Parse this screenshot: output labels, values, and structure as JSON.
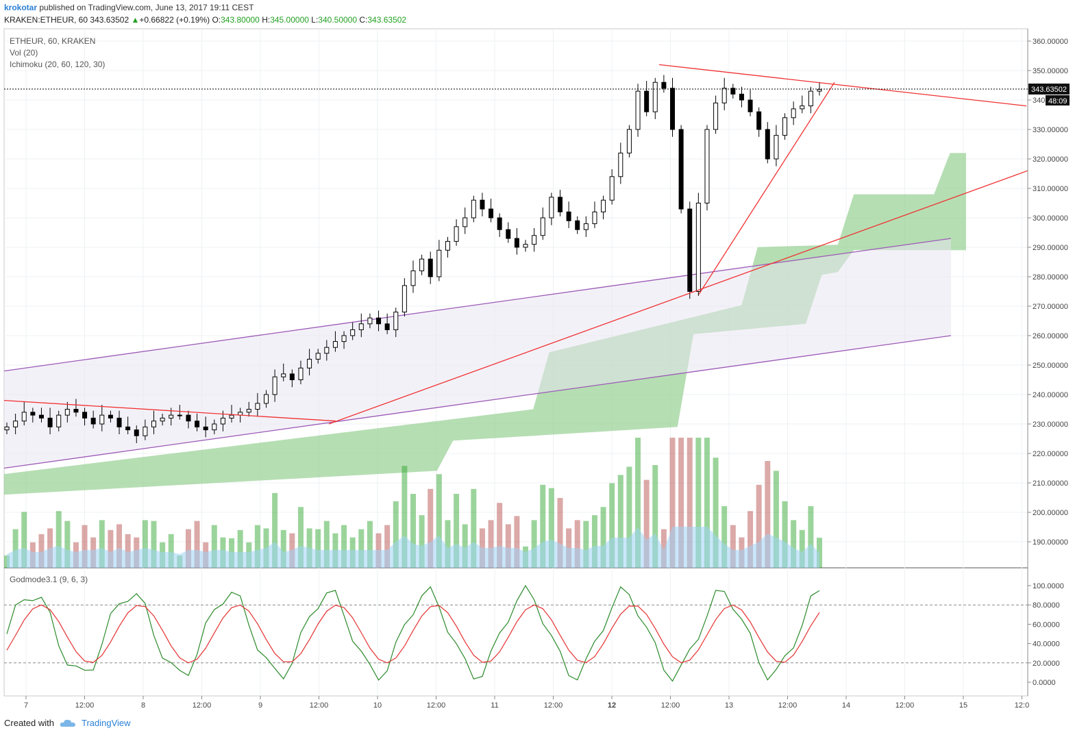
{
  "header": {
    "user": "krokotar",
    "published": "published on TradingView.com, June 13, 2017 19:11 CEST",
    "symbol": "KRAKEN:ETHEUR, 60",
    "price": "343.63502",
    "change": "+0.66822 (+0.19%)",
    "o_label": "O:",
    "o_value": "343.80000",
    "h_label": "H:",
    "h_value": "345.00000",
    "l_label": "L:",
    "l_value": "340.50000",
    "c_label": "C:",
    "c_value": "343.63502"
  },
  "pane_labels": {
    "title": "ETHEUR, 60, KRAKEN",
    "vol": "Vol (20)",
    "ichimoku": "Ichimoku (20, 60, 120, 30)",
    "oscillator": "Godmode3.1 (9, 6, 3)"
  },
  "price_tag": "343.63502",
  "time_tag": "48:09",
  "footer": {
    "created": "Created with",
    "brand": "TradingView"
  },
  "colors": {
    "up": "#22a022",
    "down": "#b0403f",
    "trend_red": "#f03030",
    "channel": "#9b59b6",
    "cloud": "#8fcc8a",
    "vol_ma": "#9fd3f5"
  },
  "chart_data": {
    "type": "candlestick",
    "symbol": "ETHEUR",
    "interval": "60",
    "y_axis": {
      "min": 180,
      "max": 360,
      "ticks": [
        "360.00000",
        "350.00000",
        "340.00000",
        "330.00000",
        "320.00000",
        "310.00000",
        "300.00000",
        "290.00000",
        "280.00000",
        "270.00000",
        "260.00000",
        "250.00000",
        "240.00000",
        "230.00000",
        "220.00000",
        "210.00000",
        "200.00000",
        "190.00000"
      ]
    },
    "x_axis": {
      "ticks": [
        "7",
        "12:00",
        "8",
        "12:00",
        "9",
        "12:00",
        "10",
        "12:00",
        "11",
        "12:00",
        "12",
        "12:00",
        "13",
        "12:00",
        "14",
        "12:00",
        "15",
        "12:0"
      ]
    },
    "osc_axis": {
      "ticks": [
        "100.0000",
        "80.0000",
        "60.0000",
        "40.0000",
        "20.0000",
        "0.0000"
      ],
      "levels": [
        80,
        20
      ]
    },
    "close_series": [
      229,
      231,
      234,
      233,
      232,
      229,
      233,
      235,
      234,
      232,
      230,
      233,
      232,
      229,
      228,
      226,
      229,
      231,
      232,
      233,
      233,
      231,
      229,
      228,
      230,
      232,
      233,
      234,
      235,
      237,
      240,
      246,
      247,
      245,
      249,
      252,
      254,
      256,
      258,
      260,
      262,
      264,
      266,
      264,
      262,
      268,
      277,
      282,
      286,
      280,
      289,
      292,
      297,
      300,
      306,
      303,
      300,
      296,
      293,
      290,
      291,
      294,
      300,
      307,
      302,
      299,
      296,
      298,
      302,
      306,
      314,
      322,
      330,
      343,
      336,
      346,
      344,
      330,
      303,
      275,
      305,
      330,
      339,
      344,
      342,
      340,
      336,
      330,
      320,
      328,
      334,
      337,
      338,
      343,
      343.6
    ],
    "trendlines": [
      {
        "name": "Resistance",
        "from": [
          0,
          238
        ],
        "to": [
          29,
          231
        ]
      },
      {
        "name": "Rising support",
        "from": [
          28,
          230
        ],
        "to": [
          95,
          312
        ]
      },
      {
        "name": "Upper triangle",
        "from": [
          60,
          352
        ],
        "to": [
          95,
          338
        ]
      },
      {
        "name": "Lower triangle",
        "from": [
          62,
          274
        ],
        "to": [
          75,
          346
        ]
      }
    ],
    "volume_max": 22,
    "oscillator": {
      "name": "Godmode3.1",
      "params": [
        9,
        6,
        3
      ]
    }
  }
}
